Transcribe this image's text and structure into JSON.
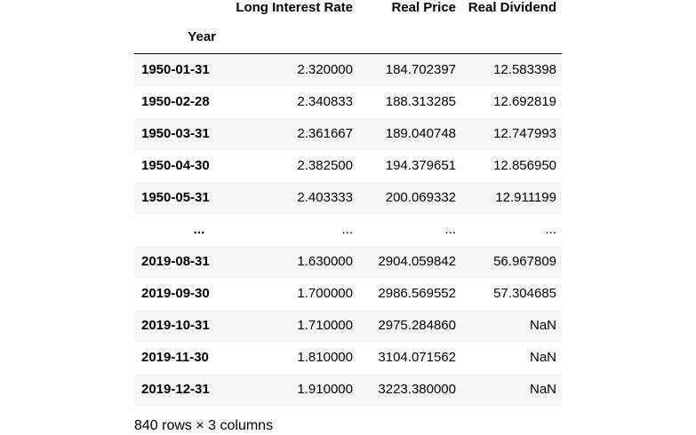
{
  "dataframe": {
    "columns": [
      "Long Interest Rate",
      "Real Price",
      "Real Dividend"
    ],
    "index_name": "Year",
    "rows": [
      {
        "index": "1950-01-31",
        "values": [
          "2.320000",
          "184.702397",
          "12.583398"
        ]
      },
      {
        "index": "1950-02-28",
        "values": [
          "2.340833",
          "188.313285",
          "12.692819"
        ]
      },
      {
        "index": "1950-03-31",
        "values": [
          "2.361667",
          "189.040748",
          "12.747993"
        ]
      },
      {
        "index": "1950-04-30",
        "values": [
          "2.382500",
          "194.379651",
          "12.856950"
        ]
      },
      {
        "index": "1950-05-31",
        "values": [
          "2.403333",
          "200.069332",
          "12.911199"
        ]
      },
      {
        "index": "...",
        "values": [
          "...",
          "...",
          "..."
        ]
      },
      {
        "index": "2019-08-31",
        "values": [
          "1.630000",
          "2904.059842",
          "56.967809"
        ]
      },
      {
        "index": "2019-09-30",
        "values": [
          "1.700000",
          "2986.569552",
          "57.304685"
        ]
      },
      {
        "index": "2019-10-31",
        "values": [
          "1.710000",
          "2975.284860",
          "NaN"
        ]
      },
      {
        "index": "2019-11-30",
        "values": [
          "1.810000",
          "3104.071562",
          "NaN"
        ]
      },
      {
        "index": "2019-12-31",
        "values": [
          "1.910000",
          "3223.380000",
          "NaN"
        ]
      }
    ],
    "shape_text": "840 rows × 3 columns"
  },
  "colors": {
    "stripe": "#f5f5f5",
    "text": "#000000",
    "background": "#ffffff"
  }
}
